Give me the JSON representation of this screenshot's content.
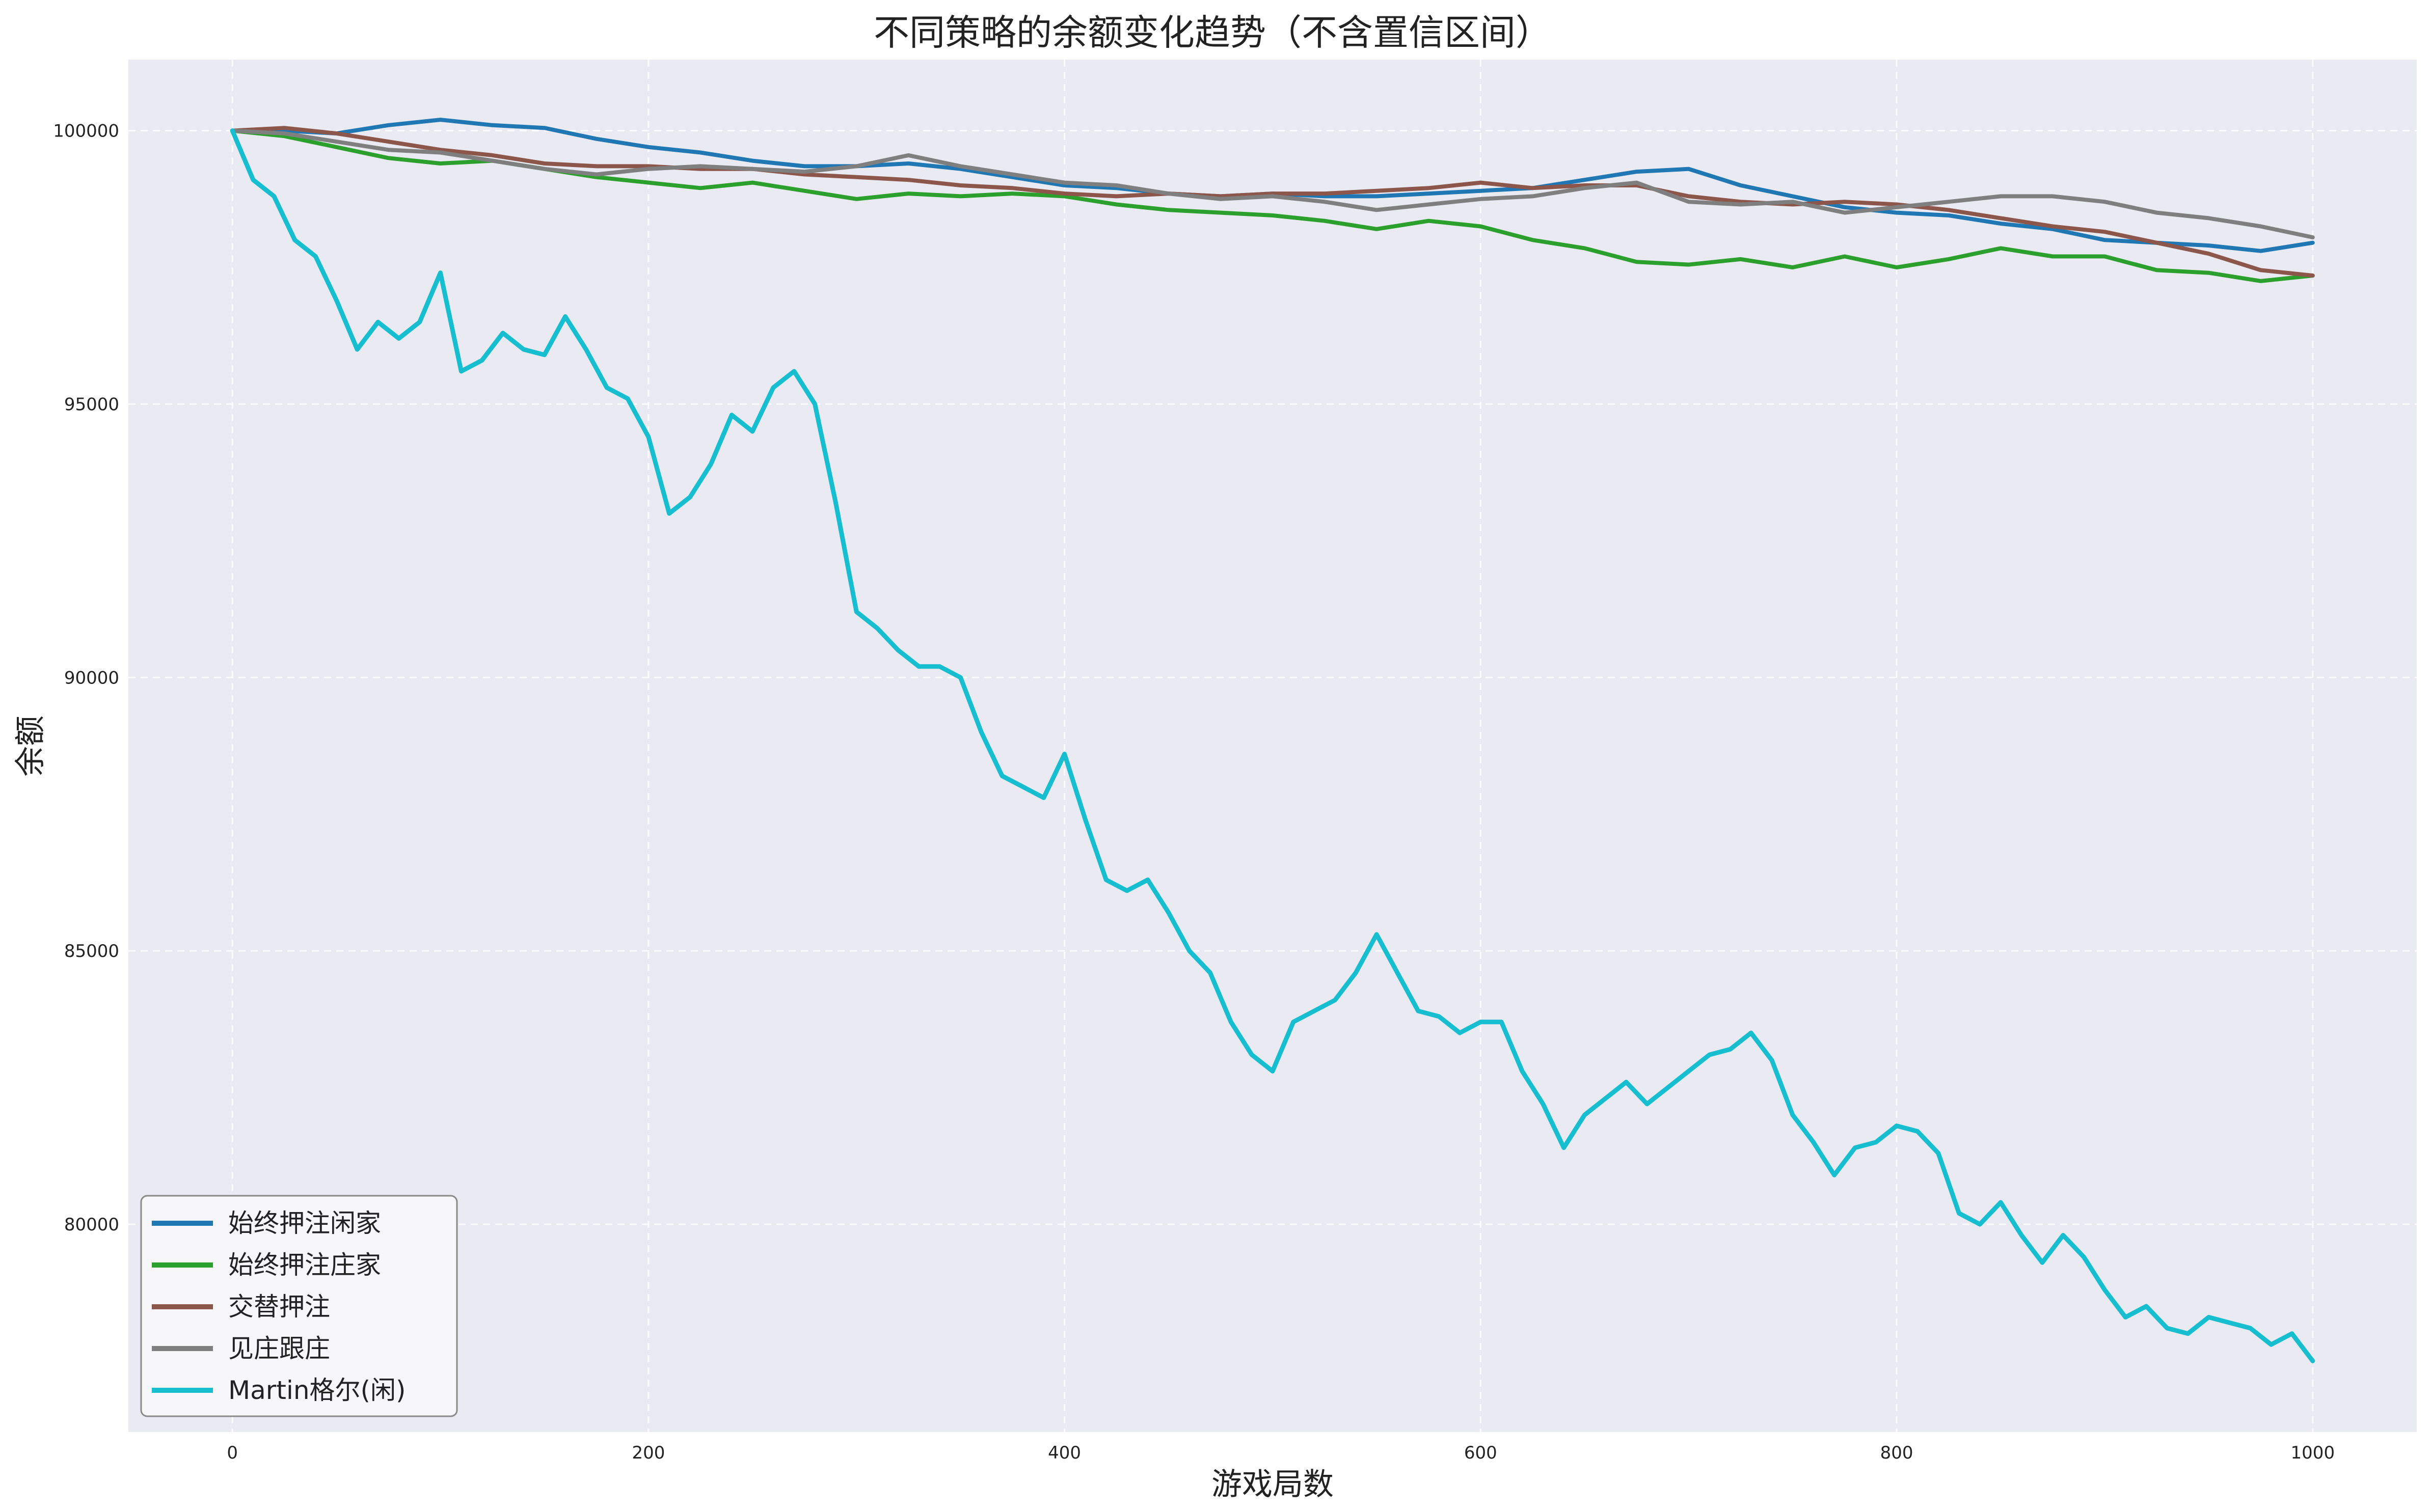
{
  "chart_data": {
    "type": "line",
    "title": "不同策略的余额变化趋势（不含置信区间）",
    "xlabel": "游戏局数",
    "ylabel": "余额",
    "xlim": [
      -50,
      1050
    ],
    "ylim": [
      76200,
      101300
    ],
    "xticks": [
      0,
      200,
      400,
      600,
      800,
      1000
    ],
    "yticks": [
      80000,
      85000,
      90000,
      95000,
      100000
    ],
    "grid": true,
    "legend_position": "lower-left",
    "series": [
      {
        "name": "始终押注闲家",
        "color": "#1f77b4",
        "x": [
          0,
          25,
          50,
          75,
          100,
          125,
          150,
          175,
          200,
          225,
          250,
          275,
          300,
          325,
          350,
          375,
          400,
          425,
          450,
          475,
          500,
          525,
          550,
          575,
          600,
          625,
          650,
          675,
          700,
          725,
          750,
          775,
          800,
          825,
          850,
          875,
          900,
          925,
          950,
          975,
          1000
        ],
        "values": [
          100000,
          100000,
          99950,
          100100,
          100200,
          100100,
          100050,
          99850,
          99700,
          99600,
          99450,
          99350,
          99350,
          99400,
          99300,
          99150,
          99000,
          98950,
          98850,
          98800,
          98850,
          98800,
          98800,
          98850,
          98900,
          98950,
          99100,
          99250,
          99300,
          99000,
          98800,
          98600,
          98500,
          98450,
          98300,
          98200,
          98000,
          97950,
          97900,
          97800,
          97950
        ]
      },
      {
        "name": "始终押注庄家",
        "color": "#2ca02c",
        "x": [
          0,
          25,
          50,
          75,
          100,
          125,
          150,
          175,
          200,
          225,
          250,
          275,
          300,
          325,
          350,
          375,
          400,
          425,
          450,
          475,
          500,
          525,
          550,
          575,
          600,
          625,
          650,
          675,
          700,
          725,
          750,
          775,
          800,
          825,
          850,
          875,
          900,
          925,
          950,
          975,
          1000
        ],
        "values": [
          100000,
          99900,
          99700,
          99500,
          99400,
          99450,
          99300,
          99150,
          99050,
          98950,
          99050,
          98900,
          98750,
          98850,
          98800,
          98850,
          98800,
          98650,
          98550,
          98500,
          98450,
          98350,
          98200,
          98350,
          98250,
          98000,
          97850,
          97600,
          97550,
          97650,
          97500,
          97700,
          97500,
          97650,
          97850,
          97700,
          97700,
          97450,
          97400,
          97250,
          97350
        ]
      },
      {
        "name": "交替押注",
        "color": "#8c564b",
        "x": [
          0,
          25,
          50,
          75,
          100,
          125,
          150,
          175,
          200,
          225,
          250,
          275,
          300,
          325,
          350,
          375,
          400,
          425,
          450,
          475,
          500,
          525,
          550,
          575,
          600,
          625,
          650,
          675,
          700,
          725,
          750,
          775,
          800,
          825,
          850,
          875,
          900,
          925,
          950,
          975,
          1000
        ],
        "values": [
          100000,
          100050,
          99950,
          99800,
          99650,
          99550,
          99400,
          99350,
          99350,
          99300,
          99300,
          99200,
          99150,
          99100,
          99000,
          98950,
          98850,
          98800,
          98850,
          98800,
          98850,
          98850,
          98900,
          98950,
          99050,
          98950,
          99000,
          99000,
          98800,
          98700,
          98650,
          98700,
          98650,
          98550,
          98400,
          98250,
          98150,
          97950,
          97750,
          97450,
          97350
        ]
      },
      {
        "name": "见庄跟庄",
        "color": "#7f7f7f",
        "x": [
          0,
          25,
          50,
          75,
          100,
          125,
          150,
          175,
          200,
          225,
          250,
          275,
          300,
          325,
          350,
          375,
          400,
          425,
          450,
          475,
          500,
          525,
          550,
          575,
          600,
          625,
          650,
          675,
          700,
          725,
          750,
          775,
          800,
          825,
          850,
          875,
          900,
          925,
          950,
          975,
          1000
        ],
        "values": [
          100000,
          99950,
          99800,
          99650,
          99600,
          99450,
          99300,
          99200,
          99300,
          99350,
          99300,
          99250,
          99350,
          99550,
          99350,
          99200,
          99050,
          99000,
          98850,
          98750,
          98800,
          98700,
          98550,
          98650,
          98750,
          98800,
          98950,
          99050,
          98700,
          98650,
          98700,
          98500,
          98600,
          98700,
          98800,
          98800,
          98700,
          98500,
          98400,
          98250,
          98050
        ]
      },
      {
        "name": "Martin格尔(闲)",
        "color": "#17becf",
        "x": [
          0,
          10,
          20,
          30,
          40,
          50,
          60,
          70,
          80,
          90,
          100,
          110,
          120,
          130,
          140,
          150,
          160,
          170,
          180,
          190,
          200,
          210,
          220,
          230,
          240,
          250,
          260,
          270,
          280,
          290,
          300,
          310,
          320,
          330,
          340,
          350,
          360,
          370,
          380,
          390,
          400,
          410,
          420,
          430,
          440,
          450,
          460,
          470,
          480,
          490,
          500,
          510,
          520,
          530,
          540,
          550,
          560,
          570,
          580,
          590,
          600,
          610,
          620,
          630,
          640,
          650,
          660,
          670,
          680,
          690,
          700,
          710,
          720,
          730,
          740,
          750,
          760,
          770,
          780,
          790,
          800,
          810,
          820,
          830,
          840,
          850,
          860,
          870,
          880,
          890,
          900,
          910,
          920,
          930,
          940,
          950,
          960,
          970,
          980,
          990,
          1000
        ],
        "values": [
          100000,
          99100,
          98800,
          98000,
          97700,
          96900,
          96000,
          96500,
          96200,
          96500,
          97400,
          95600,
          95800,
          96300,
          96000,
          95900,
          96600,
          96000,
          95300,
          95100,
          94400,
          93000,
          93300,
          93900,
          94800,
          94500,
          95300,
          95600,
          95000,
          93200,
          91200,
          90900,
          90500,
          90200,
          90200,
          90000,
          89000,
          88200,
          88000,
          87800,
          88600,
          87400,
          86300,
          86100,
          86300,
          85700,
          85000,
          84600,
          83700,
          83100,
          82800,
          83700,
          83900,
          84100,
          84600,
          85300,
          84600,
          83900,
          83800,
          83500,
          83700,
          83700,
          82800,
          82200,
          81400,
          82000,
          82300,
          82600,
          82200,
          82500,
          82800,
          83100,
          83200,
          83500,
          83000,
          82000,
          81500,
          80900,
          81400,
          81500,
          81800,
          81700,
          81300,
          80200,
          80000,
          80400,
          79800,
          79300,
          79800,
          79400,
          78800,
          78300,
          78500,
          78100,
          78000,
          78300,
          78200,
          78100,
          77800,
          78000,
          77500
        ]
      }
    ]
  }
}
